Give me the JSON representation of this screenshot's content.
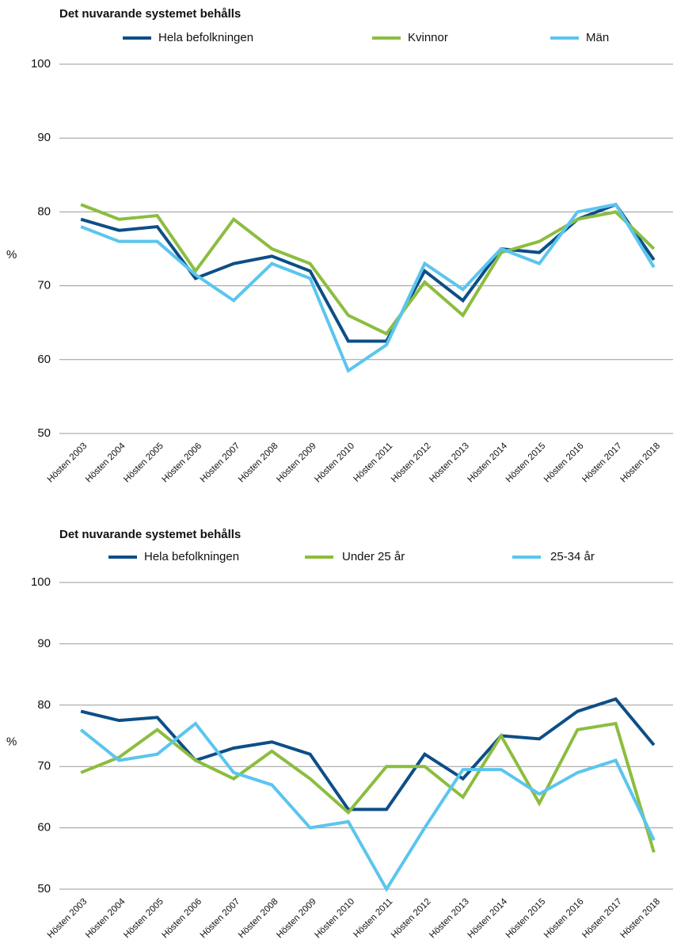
{
  "chart_data": [
    {
      "type": "line",
      "title": "Det nuvarande systemet behålls",
      "y_label": "%",
      "categories": [
        "Hösten 2003",
        "Hösten 2004",
        "Hösten 2005",
        "Hösten 2006",
        "Hösten 2007",
        "Hösten 2008",
        "Hösten 2009",
        "Hösten 2010",
        "Hösten 2011",
        "Hösten 2012",
        "Hösten 2013",
        "Hösten 2014",
        "Hösten 2015",
        "Hösten 2016",
        "Hösten 2017",
        "Hösten 2018"
      ],
      "series": [
        {
          "name": "Hela befolkningen",
          "color": "#0d4e87",
          "values": [
            79,
            77.5,
            78,
            71,
            73,
            74,
            72,
            62.5,
            62.5,
            72,
            68,
            75,
            74.5,
            79,
            81,
            73.5
          ]
        },
        {
          "name": "Kvinnor",
          "color": "#8cbd3f",
          "values": [
            81,
            79,
            79.5,
            72,
            79,
            75,
            73,
            66,
            63.5,
            70.5,
            66,
            74.5,
            76,
            79,
            80,
            75
          ]
        },
        {
          "name": "Män",
          "color": "#5bc5ee",
          "values": [
            78,
            76,
            76,
            71.5,
            68,
            73,
            71,
            58.5,
            62,
            73,
            69.5,
            75,
            73,
            80,
            81,
            72.5
          ]
        }
      ],
      "ylim": [
        50,
        100
      ],
      "yticks": [
        50,
        60,
        70,
        80,
        90,
        100
      ],
      "grid": true
    },
    {
      "type": "line",
      "title": "Det nuvarande systemet behålls",
      "y_label": "%",
      "categories": [
        "Hösten 2003",
        "Hösten 2004",
        "Hösten 2005",
        "Hösten 2006",
        "Hösten 2007",
        "Hösten 2008",
        "Hösten 2009",
        "Hösten 2010",
        "Hösten 2011",
        "Hösten 2012",
        "Hösten 2013",
        "Hösten 2014",
        "Hösten 2015",
        "Hösten 2016",
        "Hösten 2017",
        "Hösten 2018"
      ],
      "series": [
        {
          "name": "Hela befolkningen",
          "color": "#0d4e87",
          "values": [
            79,
            77.5,
            78,
            71,
            73,
            74,
            72,
            63,
            63,
            72,
            68,
            75,
            74.5,
            79,
            81,
            73.5
          ]
        },
        {
          "name": "Under 25 år",
          "color": "#8cbd3f",
          "values": [
            69,
            71.5,
            76,
            71,
            68,
            72.5,
            68,
            62.5,
            70,
            70,
            65,
            75,
            64,
            76,
            77,
            56
          ]
        },
        {
          "name": "25-34 år",
          "color": "#5bc5ee",
          "values": [
            76,
            71,
            72,
            77,
            69,
            67,
            60,
            61,
            50,
            60,
            69.5,
            69.5,
            65.5,
            69,
            71,
            58
          ]
        }
      ],
      "ylim": [
        50,
        100
      ],
      "yticks": [
        50,
        60,
        70,
        80,
        90,
        100
      ],
      "grid": true
    }
  ]
}
